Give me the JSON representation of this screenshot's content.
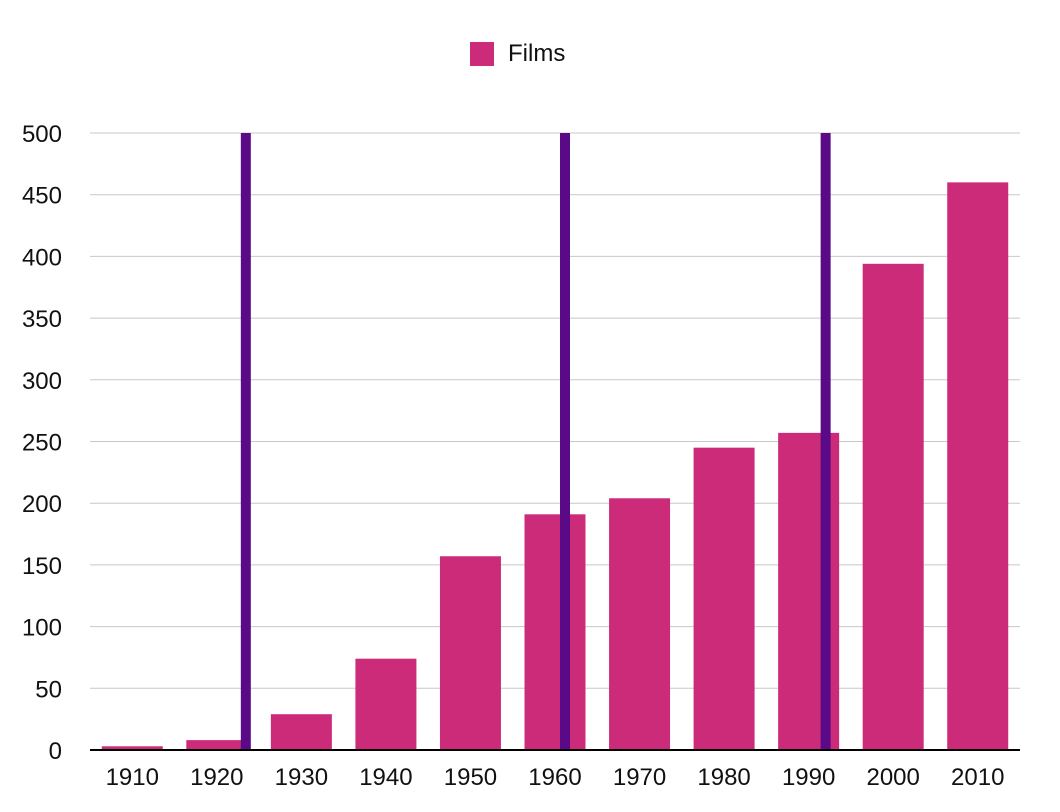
{
  "chart_data": {
    "type": "bar",
    "categories": [
      "1910",
      "1920",
      "1930",
      "1940",
      "1950",
      "1960",
      "1970",
      "1980",
      "1990",
      "2000",
      "2010"
    ],
    "series": [
      {
        "name": "Films",
        "values": [
          3,
          8,
          29,
          74,
          157,
          191,
          204,
          245,
          257,
          394,
          460
        ]
      }
    ],
    "ylim": [
      0,
      500
    ],
    "yticks": [
      0,
      50,
      100,
      150,
      200,
      250,
      300,
      350,
      400,
      450,
      500
    ],
    "grid": true,
    "legend": "top-center",
    "colors": {
      "bars": "#cc2b7a",
      "markers": "#5a0a87",
      "grid": "#c8c8c8",
      "axis": "#000000"
    },
    "markers": [
      {
        "x": "1920"
      },
      {
        "x": "1960"
      },
      {
        "x": "1990"
      }
    ]
  }
}
